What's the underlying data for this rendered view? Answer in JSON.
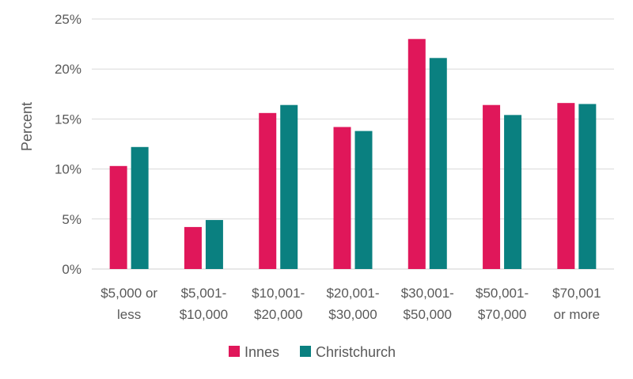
{
  "chart_data": {
    "type": "bar",
    "title": "",
    "xlabel": "",
    "ylabel": "Percent",
    "ylim": [
      0,
      25
    ],
    "yticks": [
      "0%",
      "5%",
      "10%",
      "15%",
      "20%",
      "25%"
    ],
    "ytick_values": [
      0,
      5,
      10,
      15,
      20,
      25
    ],
    "grid": true,
    "legend_position": "bottom",
    "categories": [
      [
        "$5,000 or",
        "less"
      ],
      [
        "$5,001-",
        "$10,000"
      ],
      [
        "$10,001-",
        "$20,000"
      ],
      [
        "$20,001-",
        "$30,000"
      ],
      [
        "$30,001-",
        "$50,000"
      ],
      [
        "$50,001-",
        "$70,000"
      ],
      [
        "$70,001",
        "or more"
      ]
    ],
    "series": [
      {
        "name": "Innes",
        "color": "#E0175A",
        "values": [
          10.3,
          4.2,
          15.6,
          14.2,
          23.0,
          16.4,
          16.6
        ]
      },
      {
        "name": "Christchurch",
        "color": "#0A8080",
        "values": [
          12.2,
          4.9,
          16.4,
          13.8,
          21.1,
          15.4,
          16.5
        ]
      }
    ]
  }
}
